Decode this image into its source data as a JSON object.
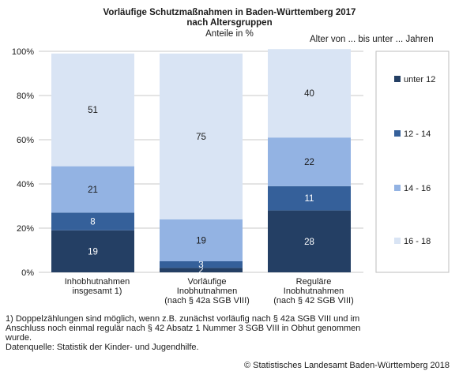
{
  "chart_data": {
    "type": "bar",
    "stacked": true,
    "title": "Vorläufige Schutzmaßnahmen in Baden-Württemberg 2017\nnach Altersgruppen",
    "subtitle": "Anteile in %",
    "legend_title": "Alter von ... bis unter ... Jahren",
    "legend_position": "right",
    "categories": [
      [
        "Inhobhutnahmen",
        "insgesamt 1)"
      ],
      [
        "Vorläufige",
        "Inobhutnahmen",
        "(nach § 42a SGB VIII)"
      ],
      [
        "Reguläre",
        "Inobhutnahmen",
        "(nach § 42 SGB VIII)"
      ]
    ],
    "ylim": [
      0,
      100
    ],
    "yticks": [
      "0%",
      "20%",
      "40%",
      "60%",
      "80%",
      "100%"
    ],
    "grid": true,
    "series": [
      {
        "name": "unter 12",
        "color": "#243f64",
        "values": [
          19,
          2,
          28
        ]
      },
      {
        "name": "12 - 14",
        "color": "#35609a",
        "values": [
          8,
          3,
          11
        ]
      },
      {
        "name": "14 - 16",
        "color": "#93b3e3",
        "values": [
          21,
          19,
          22
        ]
      },
      {
        "name": "16 - 18",
        "color": "#d9e4f4",
        "values": [
          51,
          75,
          40
        ]
      }
    ],
    "label_colors": [
      "#ffffff",
      "#ffffff",
      "#1a1a1a",
      "#1a1a1a"
    ]
  },
  "footnotes": {
    "line1": "1) Doppelzählungen sind möglich, wenn z.B. zunächst vorläufig nach § 42a SGB VIII und im",
    "line2": "Anschluss noch einmal regulär nach § 42 Absatz 1 Nummer 3 SGB VIII in Obhut genommen",
    "line3": "wurde.",
    "source": "Datenquelle: Statistik der Kinder- und Jugendhilfe."
  },
  "copyright": "© Statistisches Landesamt Baden-Württemberg 2018"
}
